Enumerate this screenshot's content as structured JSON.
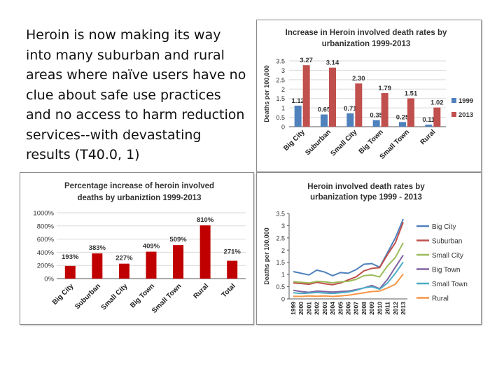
{
  "slide": {
    "text": "Heroin is now making its way into many suburban and rural areas where naïve users have no clue about safe use practices and no access to harm reduction services--with devastating results (T40.0, 1)"
  },
  "colors": {
    "s1999": "#4f81bd",
    "s2013": "#c0504d",
    "pct": "#c00000",
    "grid": "#d9d9d9",
    "axis": "#595959"
  },
  "chart_data": [
    {
      "type": "bar",
      "title": [
        "Increase in Heroin involved death rates by",
        "urbanization 1999-2013"
      ],
      "xlabel": "",
      "ylabel": "Deaths per 100,000",
      "ylim": [
        0,
        3.5
      ],
      "yticks": [
        "0",
        "0.5",
        "1",
        "1.5",
        "2",
        "2.5",
        "3",
        "3.5"
      ],
      "categories": [
        "Big City",
        "Suburban",
        "Small City",
        "Big Town",
        "Small Town",
        "Rural"
      ],
      "series": [
        {
          "name": "1999",
          "values": [
            1.12,
            0.65,
            0.71,
            0.35,
            0.25,
            0.11
          ],
          "labels": [
            "1.12",
            "0.65",
            "0.71",
            "0.35",
            "0.25",
            "0.11"
          ],
          "color": "#4f81bd"
        },
        {
          "name": "2013",
          "values": [
            3.27,
            3.14,
            2.3,
            1.79,
            1.51,
            1.02
          ],
          "labels": [
            "3.27",
            "3.14",
            "2.30",
            "1.79",
            "1.51",
            "1.02"
          ],
          "color": "#c0504d"
        }
      ],
      "legend": "right",
      "grid": true
    },
    {
      "type": "bar",
      "title": [
        "Percentage increase of heroin involved",
        "deaths by urbaniztion 1999-2013"
      ],
      "xlabel": "",
      "ylabel": "",
      "ylim": [
        0,
        1000
      ],
      "yticks": [
        "0%",
        "200%",
        "400%",
        "600%",
        "800%",
        "1000%"
      ],
      "categories": [
        "Big City",
        "Suburban",
        "Small City",
        "Big Town",
        "Small Town",
        "Rural",
        "Total"
      ],
      "values": [
        193,
        383,
        227,
        409,
        509,
        810,
        271
      ],
      "labels": [
        "193%",
        "383%",
        "227%",
        "409%",
        "509%",
        "810%",
        "271%"
      ],
      "color": "#c00000",
      "grid": true
    },
    {
      "type": "line",
      "title": [
        "Heroin involved death rates by",
        "urbanization type 1999 - 2013"
      ],
      "xlabel": "",
      "ylabel": "Deaths per 100,000",
      "ylim": [
        0,
        3.5
      ],
      "yticks": [
        "0",
        "0.5",
        "1",
        "1.5",
        "2",
        "2.5",
        "3",
        "3.5"
      ],
      "x": [
        "1999",
        "2000",
        "2001",
        "2002",
        "2003",
        "2004",
        "2005",
        "2006",
        "2007",
        "2008",
        "2009",
        "2010",
        "2011",
        "2012",
        "2013"
      ],
      "series": [
        {
          "name": "Big City",
          "color": "#4f81bd",
          "values": [
            1.12,
            1.05,
            0.98,
            1.18,
            1.1,
            0.95,
            1.08,
            1.05,
            1.2,
            1.42,
            1.45,
            1.3,
            1.9,
            2.5,
            3.27
          ]
        },
        {
          "name": "Suburban",
          "color": "#c0504d",
          "values": [
            0.65,
            0.63,
            0.6,
            0.68,
            0.62,
            0.58,
            0.65,
            0.78,
            0.9,
            1.15,
            1.25,
            1.28,
            1.82,
            2.3,
            3.14
          ]
        },
        {
          "name": "Small City",
          "color": "#9bbb59",
          "values": [
            0.71,
            0.68,
            0.65,
            0.72,
            0.7,
            0.66,
            0.7,
            0.72,
            0.8,
            0.95,
            0.98,
            0.9,
            1.35,
            1.7,
            2.3
          ]
        },
        {
          "name": "Big Town",
          "color": "#8064a2",
          "values": [
            0.35,
            0.3,
            0.27,
            0.32,
            0.3,
            0.28,
            0.3,
            0.32,
            0.38,
            0.45,
            0.55,
            0.42,
            0.8,
            1.3,
            1.79
          ]
        },
        {
          "name": "Small Town",
          "color": "#4bacc6",
          "values": [
            0.25,
            0.22,
            0.24,
            0.26,
            0.24,
            0.22,
            0.25,
            0.28,
            0.35,
            0.45,
            0.5,
            0.4,
            0.65,
            1.05,
            1.51
          ]
        },
        {
          "name": "Rural",
          "color": "#f79646",
          "values": [
            0.11,
            0.1,
            0.12,
            0.11,
            0.12,
            0.1,
            0.12,
            0.15,
            0.2,
            0.25,
            0.3,
            0.32,
            0.45,
            0.6,
            1.02
          ]
        }
      ],
      "legend": "right",
      "grid": false
    }
  ]
}
